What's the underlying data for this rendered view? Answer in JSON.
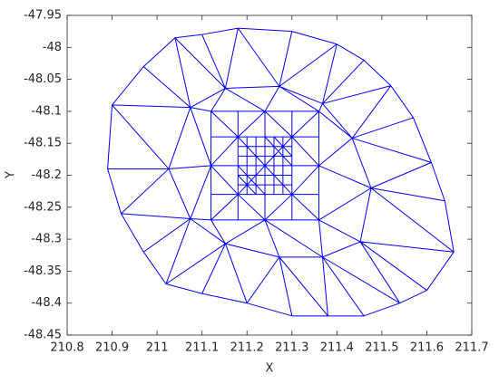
{
  "chart_data": {
    "type": "line",
    "xlabel": "X",
    "ylabel": "Y",
    "color": "#0000ff",
    "xlim": [
      210.8,
      211.7
    ],
    "ylim": [
      -48.45,
      -47.95
    ],
    "xticks": [
      210.8,
      210.9,
      211,
      211.1,
      211.2,
      211.3,
      211.4,
      211.5,
      211.6,
      211.7
    ],
    "yticks": [
      -48.45,
      -48.4,
      -48.35,
      -48.3,
      -48.25,
      -48.2,
      -48.15,
      -48.1,
      -48.05,
      -48,
      -47.95
    ],
    "x": [
      210.89,
      210.9,
      210.97,
      211.04,
      211.1,
      211.18,
      211.3,
      211.4,
      211.46,
      211.52,
      211.57,
      211.61,
      211.64,
      211.66,
      211.6,
      211.54,
      211.46,
      211.38,
      211.3,
      211.2,
      211.1,
      211.02,
      210.97,
      210.92,
      210.89,
      null,
      211.026,
      211.074,
      211.152,
      211.272,
      211.368,
      211.434,
      211.476,
      211.452,
      211.368,
      211.272,
      211.152,
      211.074,
      211.026,
      null,
      211.026,
      210.9,
      211.074,
      211.04,
      211.152,
      211.18,
      211.272,
      211.4,
      211.368,
      211.52,
      211.434,
      211.61,
      211.476,
      211.66,
      211.452,
      211.54,
      211.368,
      211.38,
      211.272,
      211.2,
      211.152,
      211.02,
      211.074,
      210.92,
      211.026,
      null,
      211.026,
      210.89,
      null,
      211.074,
      210.97,
      null,
      211.152,
      211.1,
      null,
      211.272,
      211.3,
      null,
      211.368,
      211.46,
      null,
      211.434,
      211.57,
      null,
      211.476,
      211.64,
      null,
      211.452,
      211.6,
      null,
      211.368,
      211.46,
      null,
      211.272,
      211.3,
      null,
      211.152,
      211.1,
      null,
      211.074,
      210.97,
      null,
      211.12,
      211.24,
      211.36,
      211.36,
      211.36,
      211.24,
      211.12,
      211.12,
      211.12,
      null,
      211.026,
      211.12,
      211.074,
      211.12,
      211.152,
      211.24,
      211.272,
      211.36,
      211.368,
      211.36,
      211.434,
      211.36,
      211.476,
      211.36,
      211.452,
      211.36,
      211.368,
      211.24,
      211.272,
      211.24,
      211.152,
      211.12,
      211.074,
      211.12,
      211.026,
      null,
      211.18,
      211.18,
      null,
      211.24,
      211.24,
      null,
      211.3,
      211.3,
      null,
      211.12,
      211.36,
      null,
      211.12,
      211.36,
      null,
      211.12,
      211.36,
      null,
      211.12,
      211.18,
      null,
      211.36,
      211.3,
      null,
      211.12,
      211.18,
      null,
      211.36,
      211.3,
      null,
      211.18,
      211.24,
      211.3,
      null,
      211.18,
      211.24,
      211.3,
      null,
      211.18,
      211.12,
      211.18,
      null,
      211.3,
      211.36,
      211.3,
      null,
      211.2,
      211.2,
      null,
      211.22,
      211.22,
      null,
      211.26,
      211.26,
      null,
      211.28,
      211.28,
      null,
      211.18,
      211.3,
      null,
      211.18,
      211.3,
      null,
      211.18,
      211.3,
      null,
      211.18,
      211.3,
      null,
      211.18,
      211.3,
      null,
      211.18,
      211.24,
      null,
      211.24,
      211.3,
      null,
      211.18,
      211.3,
      null,
      211.18,
      211.22,
      null,
      211.26,
      211.3
    ],
    "y": [
      -48.19,
      -48.09,
      -48.03,
      -47.985,
      -47.98,
      -47.97,
      -47.975,
      -47.995,
      -48.02,
      -48.06,
      -48.11,
      -48.18,
      -48.24,
      -48.32,
      -48.38,
      -48.4,
      -48.42,
      -48.42,
      -48.42,
      -48.4,
      -48.385,
      -48.37,
      -48.32,
      -48.26,
      -48.19,
      null,
      -48.19,
      -48.094,
      -48.064,
      -48.061,
      -48.088,
      -48.142,
      -48.22,
      -48.304,
      -48.328,
      -48.328,
      -48.307,
      -48.268,
      -48.19,
      null,
      -48.19,
      -48.09,
      -48.094,
      -47.985,
      -48.064,
      -47.97,
      -48.061,
      -47.995,
      -48.088,
      -48.06,
      -48.142,
      -48.18,
      -48.22,
      -48.32,
      -48.304,
      -48.4,
      -48.328,
      -48.42,
      -48.328,
      -48.4,
      -48.307,
      -48.37,
      -48.268,
      -48.26,
      -48.19,
      null,
      -48.19,
      -48.19,
      null,
      -48.094,
      -48.03,
      null,
      -48.064,
      -47.98,
      null,
      -48.061,
      -47.975,
      null,
      -48.088,
      -48.02,
      null,
      -48.142,
      -48.11,
      null,
      -48.22,
      -48.24,
      null,
      -48.304,
      -48.38,
      null,
      -48.328,
      -48.42,
      null,
      -48.328,
      -48.42,
      null,
      -48.307,
      -48.385,
      null,
      -48.268,
      -48.32,
      null,
      -48.1,
      -48.1,
      -48.1,
      -48.185,
      -48.27,
      -48.27,
      -48.27,
      -48.185,
      -48.1,
      null,
      -48.19,
      -48.185,
      -48.094,
      -48.1,
      -48.064,
      -48.1,
      -48.061,
      -48.1,
      -48.088,
      -48.1,
      -48.142,
      -48.185,
      -48.22,
      -48.27,
      -48.304,
      -48.27,
      -48.328,
      -48.27,
      -48.328,
      -48.27,
      -48.307,
      -48.27,
      -48.268,
      -48.185,
      -48.19,
      null,
      -48.1,
      -48.27,
      null,
      -48.1,
      -48.27,
      null,
      -48.1,
      -48.27,
      null,
      -48.14,
      -48.14,
      null,
      -48.185,
      -48.185,
      null,
      -48.23,
      -48.23,
      null,
      -48.1,
      -48.14,
      null,
      -48.1,
      -48.14,
      null,
      -48.27,
      -48.23,
      null,
      -48.27,
      -48.23,
      null,
      -48.14,
      -48.1,
      -48.14,
      null,
      -48.23,
      -48.27,
      -48.23,
      null,
      -48.14,
      -48.185,
      -48.23,
      null,
      -48.14,
      -48.185,
      -48.23,
      null,
      -48.14,
      -48.23,
      null,
      -48.14,
      -48.23,
      null,
      -48.14,
      -48.23,
      null,
      -48.14,
      -48.23,
      null,
      -48.155,
      -48.155,
      null,
      -48.17,
      -48.17,
      null,
      -48.2,
      -48.2,
      null,
      -48.215,
      -48.215,
      null,
      -48.14,
      -48.23,
      null,
      -48.185,
      -48.23,
      null,
      -48.14,
      -48.185,
      null,
      -48.23,
      -48.14,
      null,
      -48.2,
      -48.23,
      null,
      -48.14,
      -48.17
    ]
  }
}
